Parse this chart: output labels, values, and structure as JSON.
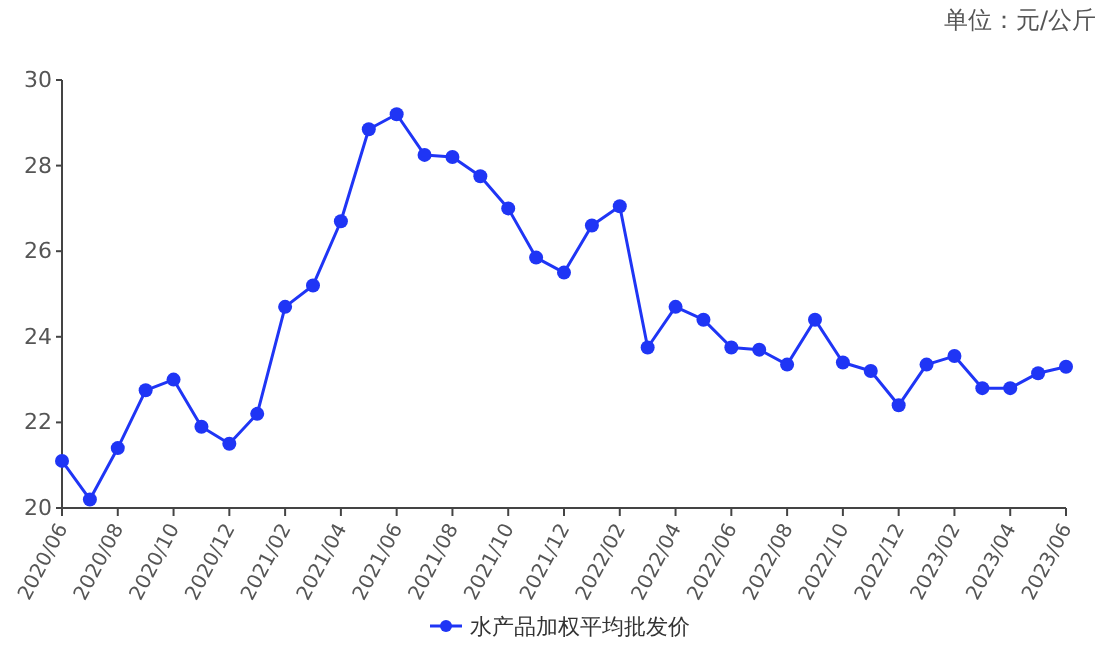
{
  "chart_data": {
    "type": "line",
    "annotations": [
      "单位：元/公斤"
    ],
    "categories": [
      "2020/06",
      null,
      "2020/08",
      null,
      "2020/10",
      null,
      "2020/12",
      null,
      "2021/02",
      null,
      "2021/04",
      null,
      "2021/06",
      null,
      "2021/08",
      null,
      "2021/10",
      null,
      "2021/12",
      null,
      "2022/02",
      null,
      "2022/04",
      null,
      "2022/06",
      null,
      "2022/08",
      null,
      "2022/10",
      null,
      "2022/12",
      null,
      "2023/02",
      null,
      "2023/04",
      null,
      "2023/06"
    ],
    "series": [
      {
        "name": "水产品加权平均批发价",
        "color": "#1f35f5",
        "values": [
          21.1,
          20.2,
          21.4,
          22.75,
          23.0,
          21.9,
          21.5,
          22.2,
          24.7,
          25.2,
          26.7,
          28.85,
          29.2,
          28.25,
          28.2,
          27.75,
          27.0,
          25.85,
          25.5,
          26.6,
          27.05,
          23.75,
          24.7,
          24.4,
          23.75,
          23.7,
          23.35,
          24.4,
          23.4,
          23.2,
          22.4,
          23.35,
          23.55,
          22.8,
          22.8,
          23.15,
          23.3
        ]
      }
    ],
    "ylim": [
      20,
      30
    ],
    "yticks": [
      20,
      22,
      24,
      26,
      28,
      30
    ],
    "legend": "bottom",
    "marker": "circle",
    "line_style": "solid",
    "grid": false
  }
}
